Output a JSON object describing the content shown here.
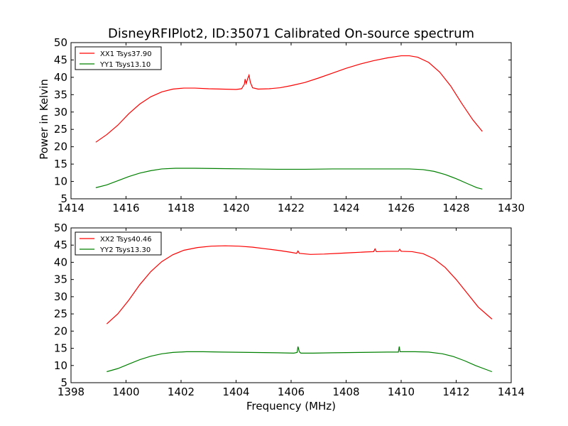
{
  "title": "DisneyRFIPlot2, ID:35071 Calibrated On-source spectrum",
  "chart_data": [
    {
      "type": "line",
      "xlabel": "",
      "ylabel": "Power in Kelvin",
      "xlim": [
        1414,
        1430
      ],
      "ylim": [
        5,
        50
      ],
      "xticks": [
        "1414",
        "1416",
        "1418",
        "1420",
        "1422",
        "1424",
        "1426",
        "1428",
        "1430"
      ],
      "yticks": [
        "5",
        "10",
        "15",
        "20",
        "25",
        "30",
        "35",
        "40",
        "45",
        "50"
      ],
      "legend_position": "upper-left",
      "grid": false,
      "series": [
        {
          "name": "XX1 Tsys37.90",
          "color": "#ff0000",
          "points": [
            [
              1414.9,
              21.3
            ],
            [
              1415.3,
              23.5
            ],
            [
              1415.7,
              26.2
            ],
            [
              1416.1,
              29.5
            ],
            [
              1416.5,
              32.3
            ],
            [
              1416.9,
              34.4
            ],
            [
              1417.3,
              35.8
            ],
            [
              1417.7,
              36.6
            ],
            [
              1418.1,
              36.9
            ],
            [
              1418.5,
              36.9
            ],
            [
              1419.0,
              36.7
            ],
            [
              1419.5,
              36.6
            ],
            [
              1420.0,
              36.5
            ],
            [
              1420.2,
              36.7
            ],
            [
              1420.3,
              38.0
            ],
            [
              1420.33,
              39.5
            ],
            [
              1420.37,
              38.2
            ],
            [
              1420.42,
              39.6
            ],
            [
              1420.47,
              40.6
            ],
            [
              1420.52,
              38.5
            ],
            [
              1420.6,
              37.0
            ],
            [
              1420.8,
              36.6
            ],
            [
              1421.2,
              36.7
            ],
            [
              1421.6,
              37.0
            ],
            [
              1422.0,
              37.6
            ],
            [
              1422.5,
              38.5
            ],
            [
              1423.0,
              39.8
            ],
            [
              1423.5,
              41.2
            ],
            [
              1424.0,
              42.6
            ],
            [
              1424.5,
              43.8
            ],
            [
              1425.0,
              44.8
            ],
            [
              1425.5,
              45.6
            ],
            [
              1426.0,
              46.2
            ],
            [
              1426.3,
              46.2
            ],
            [
              1426.6,
              45.8
            ],
            [
              1427.0,
              44.3
            ],
            [
              1427.4,
              41.5
            ],
            [
              1427.8,
              37.5
            ],
            [
              1428.2,
              32.5
            ],
            [
              1428.6,
              27.8
            ],
            [
              1428.95,
              24.4
            ]
          ]
        },
        {
          "name": "YY1 Tsys13.10",
          "color": "#008000",
          "points": [
            [
              1414.9,
              8.2
            ],
            [
              1415.3,
              9.0
            ],
            [
              1415.7,
              10.2
            ],
            [
              1416.1,
              11.4
            ],
            [
              1416.5,
              12.4
            ],
            [
              1416.9,
              13.1
            ],
            [
              1417.3,
              13.6
            ],
            [
              1417.8,
              13.8
            ],
            [
              1418.5,
              13.8
            ],
            [
              1419.5,
              13.7
            ],
            [
              1420.5,
              13.6
            ],
            [
              1421.5,
              13.5
            ],
            [
              1422.5,
              13.5
            ],
            [
              1423.5,
              13.6
            ],
            [
              1424.5,
              13.6
            ],
            [
              1425.5,
              13.6
            ],
            [
              1426.3,
              13.6
            ],
            [
              1426.8,
              13.4
            ],
            [
              1427.2,
              12.9
            ],
            [
              1427.6,
              12.0
            ],
            [
              1428.0,
              10.8
            ],
            [
              1428.4,
              9.4
            ],
            [
              1428.75,
              8.2
            ],
            [
              1428.95,
              7.8
            ]
          ]
        }
      ]
    },
    {
      "type": "line",
      "xlabel": "Frequency (MHz)",
      "ylabel": "",
      "xlim": [
        1398,
        1414
      ],
      "ylim": [
        5,
        50
      ],
      "xticks": [
        "1398",
        "1400",
        "1402",
        "1404",
        "1406",
        "1408",
        "1410",
        "1412",
        "1414"
      ],
      "yticks": [
        "5",
        "10",
        "15",
        "20",
        "25",
        "30",
        "35",
        "40",
        "45",
        "50"
      ],
      "legend_position": "upper-left",
      "grid": false,
      "series": [
        {
          "name": "XX2 Tsys40.46",
          "color": "#ff0000",
          "points": [
            [
              1399.3,
              22.1
            ],
            [
              1399.7,
              25.0
            ],
            [
              1400.1,
              29.0
            ],
            [
              1400.5,
              33.5
            ],
            [
              1400.9,
              37.3
            ],
            [
              1401.3,
              40.2
            ],
            [
              1401.7,
              42.2
            ],
            [
              1402.1,
              43.5
            ],
            [
              1402.6,
              44.3
            ],
            [
              1403.1,
              44.7
            ],
            [
              1403.6,
              44.8
            ],
            [
              1404.1,
              44.7
            ],
            [
              1404.6,
              44.4
            ],
            [
              1405.1,
              43.9
            ],
            [
              1405.6,
              43.4
            ],
            [
              1406.0,
              42.9
            ],
            [
              1406.2,
              42.6
            ],
            [
              1406.25,
              43.3
            ],
            [
              1406.3,
              42.6
            ],
            [
              1406.7,
              42.3
            ],
            [
              1407.2,
              42.4
            ],
            [
              1407.7,
              42.6
            ],
            [
              1408.2,
              42.8
            ],
            [
              1408.7,
              43.0
            ],
            [
              1409.0,
              43.1
            ],
            [
              1409.05,
              43.9
            ],
            [
              1409.1,
              43.1
            ],
            [
              1409.5,
              43.2
            ],
            [
              1409.9,
              43.2
            ],
            [
              1409.95,
              43.8
            ],
            [
              1410.0,
              43.2
            ],
            [
              1410.4,
              43.1
            ],
            [
              1410.8,
              42.5
            ],
            [
              1411.2,
              41.0
            ],
            [
              1411.6,
              38.5
            ],
            [
              1412.0,
              35.0
            ],
            [
              1412.4,
              31.0
            ],
            [
              1412.8,
              27.0
            ],
            [
              1413.3,
              23.5
            ]
          ]
        },
        {
          "name": "YY2 Tsys13.30",
          "color": "#008000",
          "points": [
            [
              1399.3,
              8.2
            ],
            [
              1399.7,
              9.1
            ],
            [
              1400.1,
              10.4
            ],
            [
              1400.5,
              11.7
            ],
            [
              1400.9,
              12.7
            ],
            [
              1401.3,
              13.4
            ],
            [
              1401.7,
              13.8
            ],
            [
              1402.2,
              14.0
            ],
            [
              1402.8,
              14.0
            ],
            [
              1403.5,
              13.9
            ],
            [
              1404.5,
              13.8
            ],
            [
              1405.5,
              13.7
            ],
            [
              1406.1,
              13.6
            ],
            [
              1406.22,
              13.8
            ],
            [
              1406.25,
              15.5
            ],
            [
              1406.3,
              14.0
            ],
            [
              1406.35,
              13.6
            ],
            [
              1406.8,
              13.6
            ],
            [
              1407.5,
              13.7
            ],
            [
              1408.5,
              13.8
            ],
            [
              1409.5,
              13.9
            ],
            [
              1409.9,
              13.9
            ],
            [
              1409.93,
              15.5
            ],
            [
              1409.96,
              14.0
            ],
            [
              1410.5,
              14.0
            ],
            [
              1411.0,
              13.9
            ],
            [
              1411.5,
              13.4
            ],
            [
              1411.9,
              12.6
            ],
            [
              1412.3,
              11.4
            ],
            [
              1412.7,
              10.0
            ],
            [
              1413.3,
              8.2
            ]
          ]
        }
      ]
    }
  ]
}
